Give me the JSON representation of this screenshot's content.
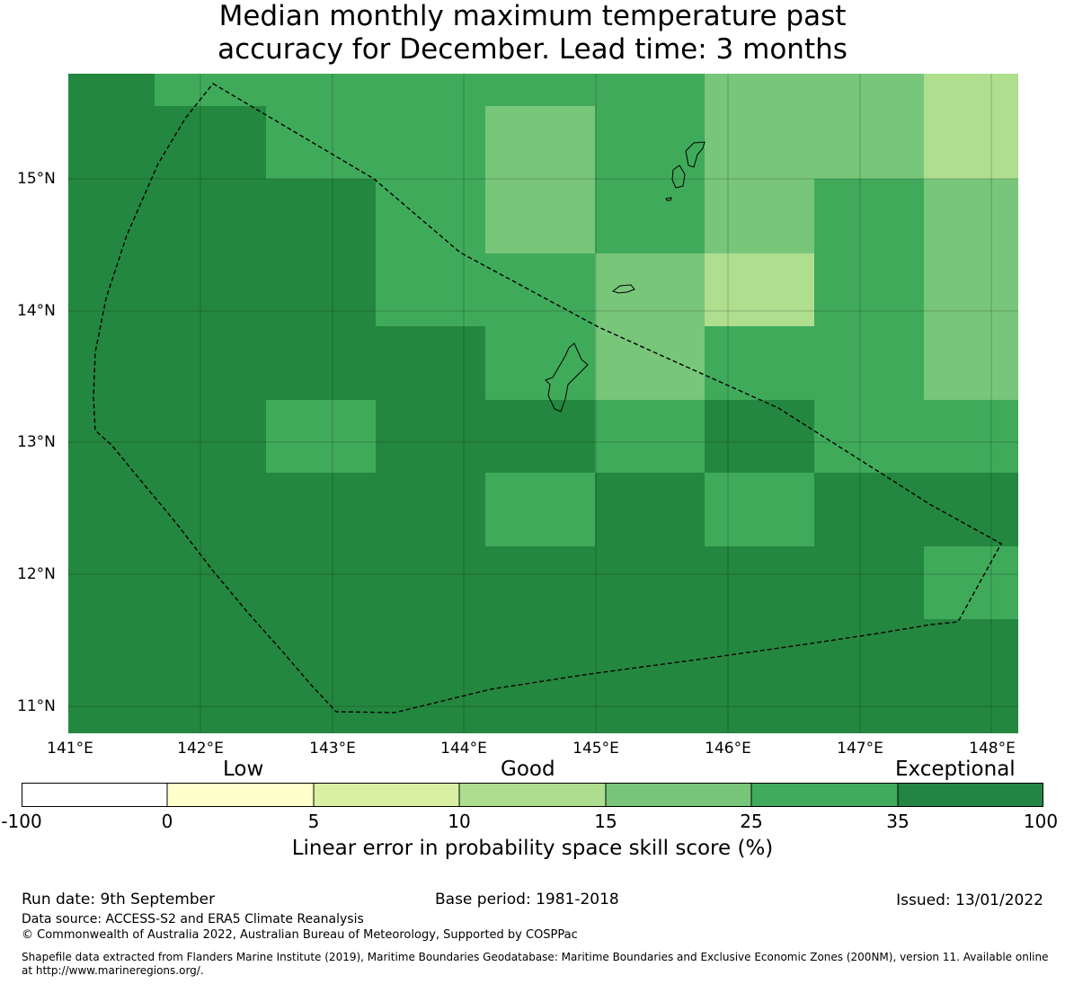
{
  "title_line1": "Median monthly maximum temperature past",
  "title_line2": "accuracy for December. Lead time: 3 months",
  "map": {
    "lon_range": [
      141.0,
      148.2
    ],
    "lat_range": [
      10.8,
      15.8
    ],
    "x_ticks": [
      "141°E",
      "142°E",
      "143°E",
      "144°E",
      "145°E",
      "146°E",
      "147°E",
      "148°E"
    ],
    "y_ticks": [
      "15°N",
      "14°N",
      "13°N",
      "12°N",
      "11°N"
    ],
    "colors": {
      "exceptional_dark": "#24873f",
      "good_green": "#40aa5b",
      "mid_green": "#78c67a",
      "light_green": "#aede8e",
      "outline": "#000000"
    }
  },
  "categories": {
    "low": "Low",
    "good": "Good",
    "exceptional": "Exceptional"
  },
  "colorbar": {
    "tick_labels": [
      "-100",
      "0",
      "5",
      "10",
      "15",
      "25",
      "35",
      "100"
    ],
    "colors": [
      "#ffffff",
      "#ffffcc",
      "#d9f0a3",
      "#addd8e",
      "#78c679",
      "#41ab5d",
      "#238443"
    ],
    "label": "Linear error in probability space skill score (%)"
  },
  "footer": {
    "run_date": "Run date: 9th September",
    "base_period": "Base period: 1981-2018",
    "issued": "Issued: 13/01/2022",
    "data_source": "Data source: ACCESS-S2 and ERA5 Climate Reanalysis",
    "copyright": "© Commonwealth of Australia 2022, Australian Bureau of Meteorology, Supported by COSPPac",
    "shapefile": "Shapefile data extracted from Flanders Marine Institute (2019), Maritime Boundaries Geodatabase: Maritime Boundaries and Exclusive Economic Zones (200NM), version 11. Available online at http://www.marineregions.org/."
  }
}
